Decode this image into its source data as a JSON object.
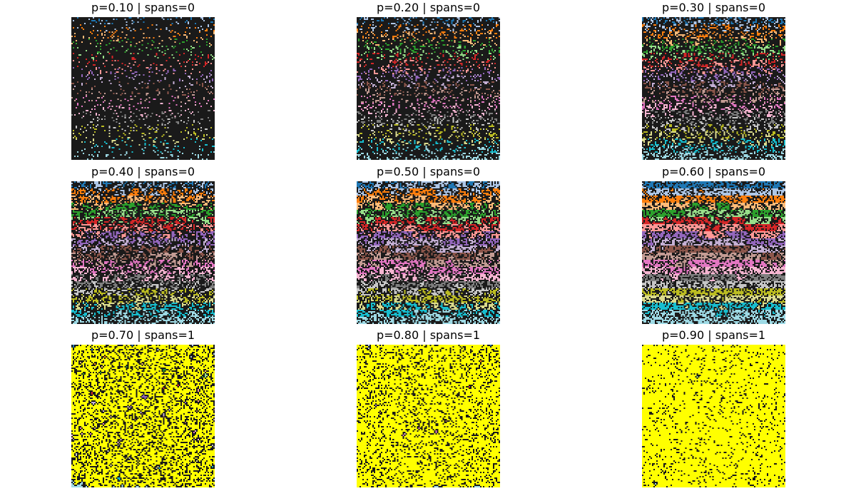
{
  "chart_data": [
    {
      "type": "heatmap",
      "title": "p=0.10 | spans=0",
      "p": 0.1,
      "spans": 0
    },
    {
      "type": "heatmap",
      "title": "p=0.20 | spans=0",
      "p": 0.2,
      "spans": 0
    },
    {
      "type": "heatmap",
      "title": "p=0.30 | spans=0",
      "p": 0.3,
      "spans": 0
    },
    {
      "type": "heatmap",
      "title": "p=0.40 | spans=0",
      "p": 0.4,
      "spans": 0
    },
    {
      "type": "heatmap",
      "title": "p=0.50 | spans=0",
      "p": 0.5,
      "spans": 0
    },
    {
      "type": "heatmap",
      "title": "p=0.60 | spans=0",
      "p": 0.6,
      "spans": 0
    },
    {
      "type": "heatmap",
      "title": "p=0.70 | spans=1",
      "p": 0.7,
      "spans": 1
    },
    {
      "type": "heatmap",
      "title": "p=0.80 | spans=1",
      "p": 0.8,
      "spans": 1
    },
    {
      "type": "heatmap",
      "title": "p=0.90 | spans=1",
      "p": 0.9,
      "spans": 1
    }
  ],
  "colors": {
    "background_cell": "#1a1a1a",
    "spanning_cluster": "#ffff00",
    "palette": [
      "#1f77b4",
      "#aec7e8",
      "#ff7f0e",
      "#ffbb78",
      "#2ca02c",
      "#98df8a",
      "#d62728",
      "#ff9896",
      "#9467bd",
      "#c5b0d5",
      "#8c564b",
      "#c49c94",
      "#e377c2",
      "#f7b6d2",
      "#7f7f7f",
      "#c7c7c7",
      "#bcbd22",
      "#dbdb8d",
      "#17becf",
      "#9edae5"
    ]
  }
}
